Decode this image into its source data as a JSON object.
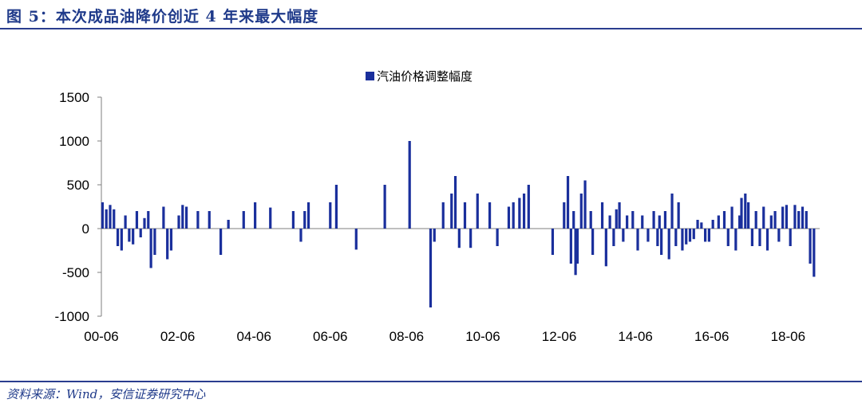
{
  "header": {
    "title": "图 5：本次成品油降价创近 4 年来最大幅度"
  },
  "footer": {
    "source": "资料来源：Wind，安信证券研究中心"
  },
  "colors": {
    "accent": "#1f3a8a",
    "bar": "#1a2f9c"
  },
  "chart_data": {
    "type": "bar",
    "title": "",
    "xlabel": "",
    "ylabel": "",
    "ylim": [
      -1000,
      1500
    ],
    "yticks": [
      1500,
      1000,
      500,
      0,
      -500,
      -1000
    ],
    "xlim": [
      2000.42,
      2019.25
    ],
    "xticks": [
      {
        "label": "00-06",
        "value": 2000.42
      },
      {
        "label": "02-06",
        "value": 2002.42
      },
      {
        "label": "04-06",
        "value": 2004.42
      },
      {
        "label": "06-06",
        "value": 2006.42
      },
      {
        "label": "08-06",
        "value": 2008.42
      },
      {
        "label": "10-06",
        "value": 2010.42
      },
      {
        "label": "12-06",
        "value": 2012.42
      },
      {
        "label": "14-06",
        "value": 2014.42
      },
      {
        "label": "16-06",
        "value": 2016.42
      },
      {
        "label": "18-06",
        "value": 2018.42
      }
    ],
    "grid": false,
    "legend_position": "top-center",
    "series": [
      {
        "name": "汽油价格调整幅度",
        "points": [
          [
            2000.45,
            300
          ],
          [
            2000.55,
            220
          ],
          [
            2000.65,
            270
          ],
          [
            2000.75,
            220
          ],
          [
            2000.85,
            -200
          ],
          [
            2000.95,
            -250
          ],
          [
            2001.05,
            150
          ],
          [
            2001.15,
            -150
          ],
          [
            2001.25,
            -180
          ],
          [
            2001.35,
            200
          ],
          [
            2001.45,
            -100
          ],
          [
            2001.55,
            120
          ],
          [
            2001.65,
            200
          ],
          [
            2001.72,
            -450
          ],
          [
            2001.82,
            -300
          ],
          [
            2002.05,
            250
          ],
          [
            2002.15,
            -350
          ],
          [
            2002.25,
            -250
          ],
          [
            2002.45,
            150
          ],
          [
            2002.55,
            270
          ],
          [
            2002.65,
            250
          ],
          [
            2002.95,
            200
          ],
          [
            2003.25,
            200
          ],
          [
            2003.55,
            -300
          ],
          [
            2003.75,
            100
          ],
          [
            2004.15,
            200
          ],
          [
            2004.45,
            300
          ],
          [
            2004.85,
            240
          ],
          [
            2005.45,
            200
          ],
          [
            2005.65,
            -150
          ],
          [
            2005.75,
            200
          ],
          [
            2005.85,
            300
          ],
          [
            2006.42,
            300
          ],
          [
            2006.58,
            500
          ],
          [
            2007.1,
            -240
          ],
          [
            2007.85,
            500
          ],
          [
            2008.5,
            1000
          ],
          [
            2009.05,
            -900
          ],
          [
            2009.15,
            -150
          ],
          [
            2009.38,
            300
          ],
          [
            2009.6,
            400
          ],
          [
            2009.7,
            600
          ],
          [
            2009.8,
            -220
          ],
          [
            2009.95,
            300
          ],
          [
            2010.1,
            -220
          ],
          [
            2010.28,
            400
          ],
          [
            2010.6,
            300
          ],
          [
            2010.8,
            -200
          ],
          [
            2011.1,
            250
          ],
          [
            2011.22,
            300
          ],
          [
            2011.38,
            350
          ],
          [
            2011.5,
            400
          ],
          [
            2011.62,
            500
          ],
          [
            2012.25,
            -300
          ],
          [
            2012.55,
            300
          ],
          [
            2012.65,
            600
          ],
          [
            2012.73,
            -400
          ],
          [
            2012.8,
            200
          ],
          [
            2012.85,
            -530
          ],
          [
            2012.9,
            -400
          ],
          [
            2013.0,
            400
          ],
          [
            2013.1,
            550
          ],
          [
            2013.25,
            200
          ],
          [
            2013.3,
            -300
          ],
          [
            2013.55,
            300
          ],
          [
            2013.65,
            -430
          ],
          [
            2013.75,
            150
          ],
          [
            2013.85,
            -200
          ],
          [
            2013.92,
            220
          ],
          [
            2014.0,
            300
          ],
          [
            2014.1,
            -150
          ],
          [
            2014.2,
            150
          ],
          [
            2014.35,
            200
          ],
          [
            2014.48,
            -250
          ],
          [
            2014.6,
            150
          ],
          [
            2014.75,
            -150
          ],
          [
            2014.9,
            200
          ],
          [
            2015.0,
            -200
          ],
          [
            2015.05,
            150
          ],
          [
            2015.1,
            -300
          ],
          [
            2015.2,
            200
          ],
          [
            2015.3,
            -350
          ],
          [
            2015.38,
            400
          ],
          [
            2015.48,
            -200
          ],
          [
            2015.55,
            300
          ],
          [
            2015.65,
            -250
          ],
          [
            2015.75,
            -180
          ],
          [
            2015.85,
            -150
          ],
          [
            2015.95,
            -120
          ],
          [
            2016.05,
            100
          ],
          [
            2016.15,
            70
          ],
          [
            2016.25,
            -150
          ],
          [
            2016.35,
            -150
          ],
          [
            2016.45,
            100
          ],
          [
            2016.6,
            150
          ],
          [
            2016.75,
            200
          ],
          [
            2016.85,
            -200
          ],
          [
            2016.95,
            250
          ],
          [
            2017.05,
            -250
          ],
          [
            2017.15,
            150
          ],
          [
            2017.2,
            350
          ],
          [
            2017.3,
            400
          ],
          [
            2017.38,
            300
          ],
          [
            2017.48,
            -200
          ],
          [
            2017.58,
            200
          ],
          [
            2017.68,
            -200
          ],
          [
            2017.78,
            250
          ],
          [
            2017.88,
            -250
          ],
          [
            2017.98,
            150
          ],
          [
            2018.08,
            200
          ],
          [
            2018.18,
            -150
          ],
          [
            2018.28,
            250
          ],
          [
            2018.38,
            270
          ],
          [
            2018.48,
            -200
          ],
          [
            2018.6,
            270
          ],
          [
            2018.7,
            200
          ],
          [
            2018.8,
            250
          ],
          [
            2018.9,
            200
          ],
          [
            2019.0,
            -400
          ],
          [
            2019.1,
            -550
          ]
        ]
      }
    ]
  }
}
